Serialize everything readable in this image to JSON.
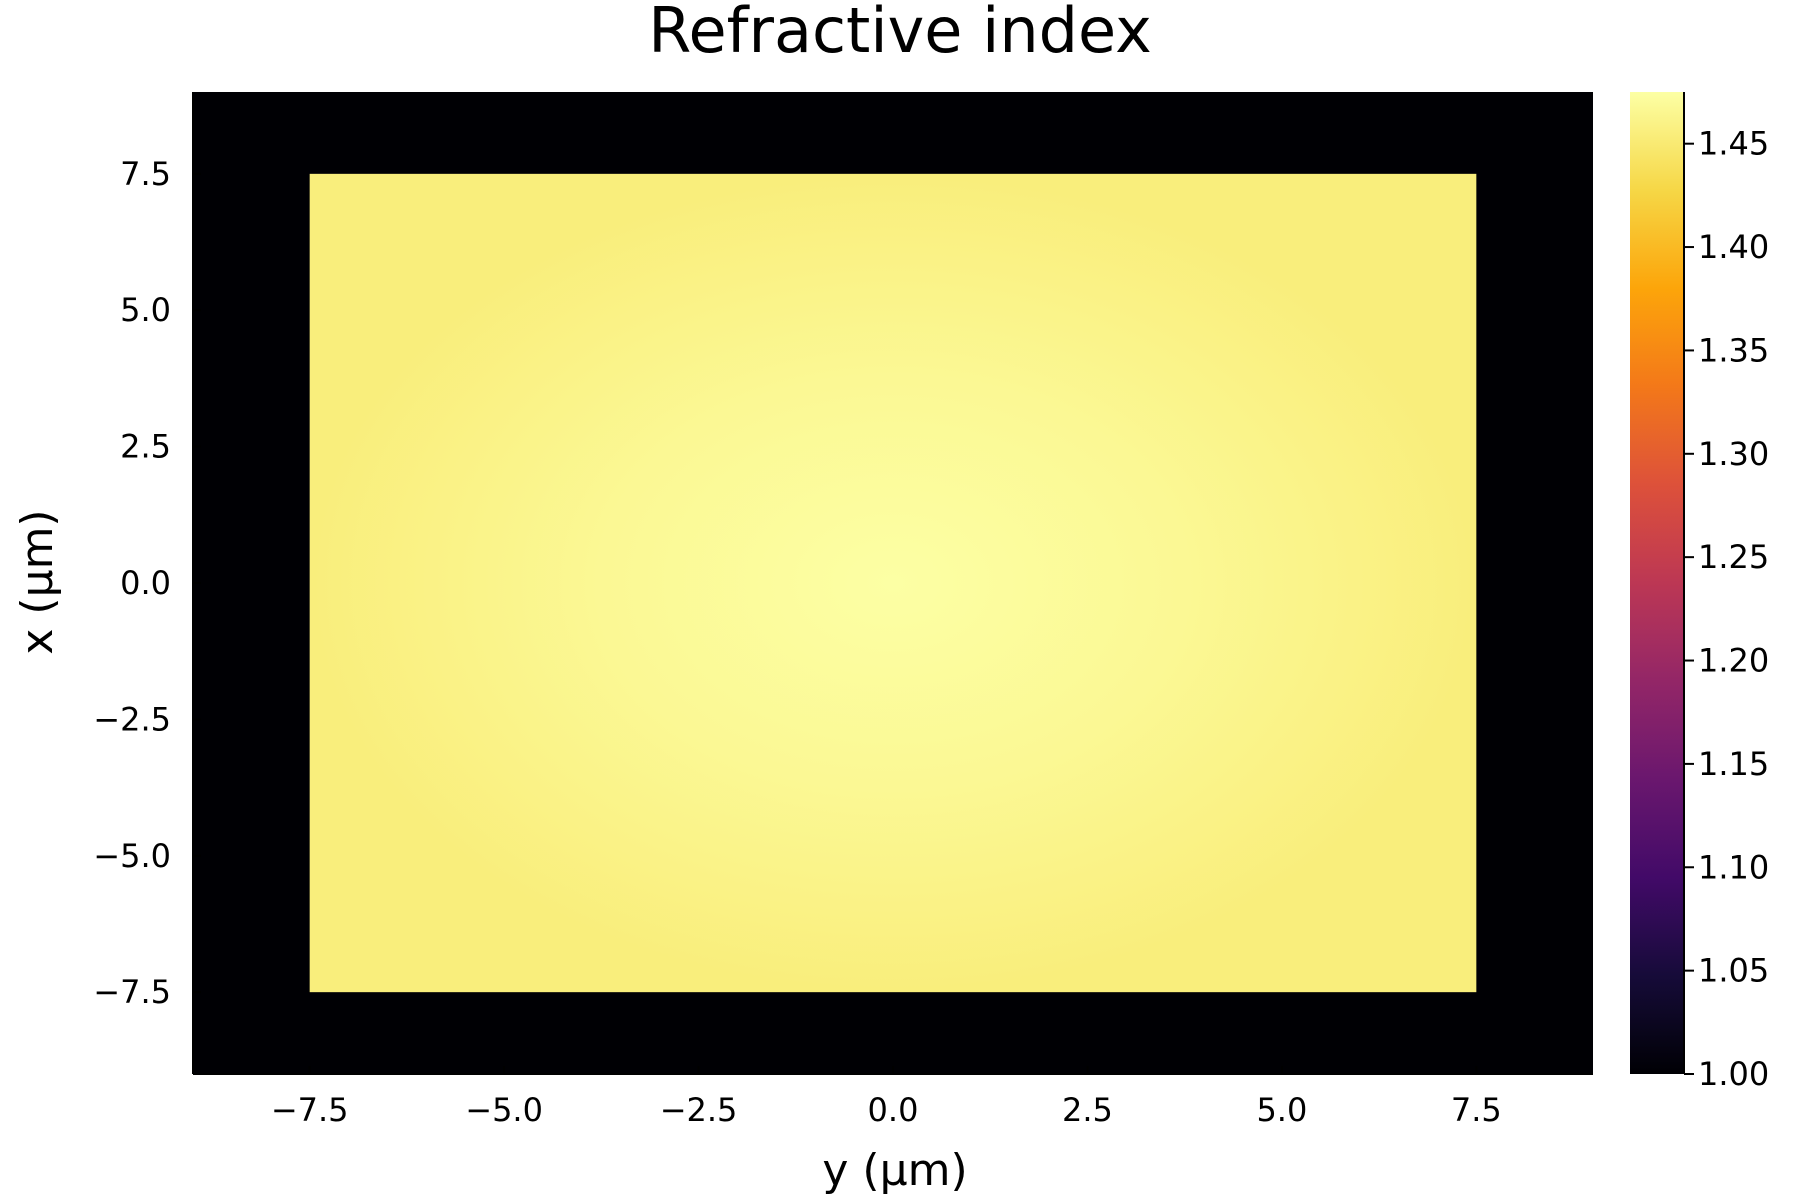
{
  "chart_data": {
    "type": "heatmap",
    "title": "Refractive index",
    "xlabel": "y (µm)",
    "ylabel": "x (µm)",
    "xlim": [
      -9.0,
      9.0
    ],
    "ylim": [
      -9.0,
      9.0
    ],
    "x_ticks": [
      -7.5,
      -5.0,
      -2.5,
      0.0,
      2.5,
      5.0,
      7.5
    ],
    "x_tick_labels": [
      "−7.5",
      "−5.0",
      "−2.5",
      "0.0",
      "2.5",
      "5.0",
      "7.5"
    ],
    "y_ticks": [
      -7.5,
      -5.0,
      -2.5,
      0.0,
      2.5,
      5.0,
      7.5
    ],
    "y_tick_labels": [
      "−7.5",
      "−5.0",
      "−2.5",
      "0.0",
      "2.5",
      "5.0",
      "7.5"
    ],
    "colormap": "inferno",
    "colorbar": {
      "range": [
        1.0,
        1.475
      ],
      "ticks": [
        1.0,
        1.05,
        1.1,
        1.15,
        1.2,
        1.25,
        1.3,
        1.35,
        1.4,
        1.45
      ],
      "tick_labels": [
        "1.00",
        "1.05",
        "1.10",
        "1.15",
        "1.20",
        "1.25",
        "1.30",
        "1.35",
        "1.40",
        "1.45"
      ]
    },
    "regions": [
      {
        "name": "background",
        "x_range": [
          -9.0,
          9.0
        ],
        "y_range": [
          -9.0,
          9.0
        ],
        "value": 1.0
      },
      {
        "name": "core",
        "x_range": [
          -7.5,
          7.5
        ],
        "y_range": [
          -7.5,
          7.5
        ],
        "center_value": 1.475,
        "edge_value": 1.455,
        "profile": "graded"
      }
    ],
    "grid": false,
    "legend": "none"
  }
}
